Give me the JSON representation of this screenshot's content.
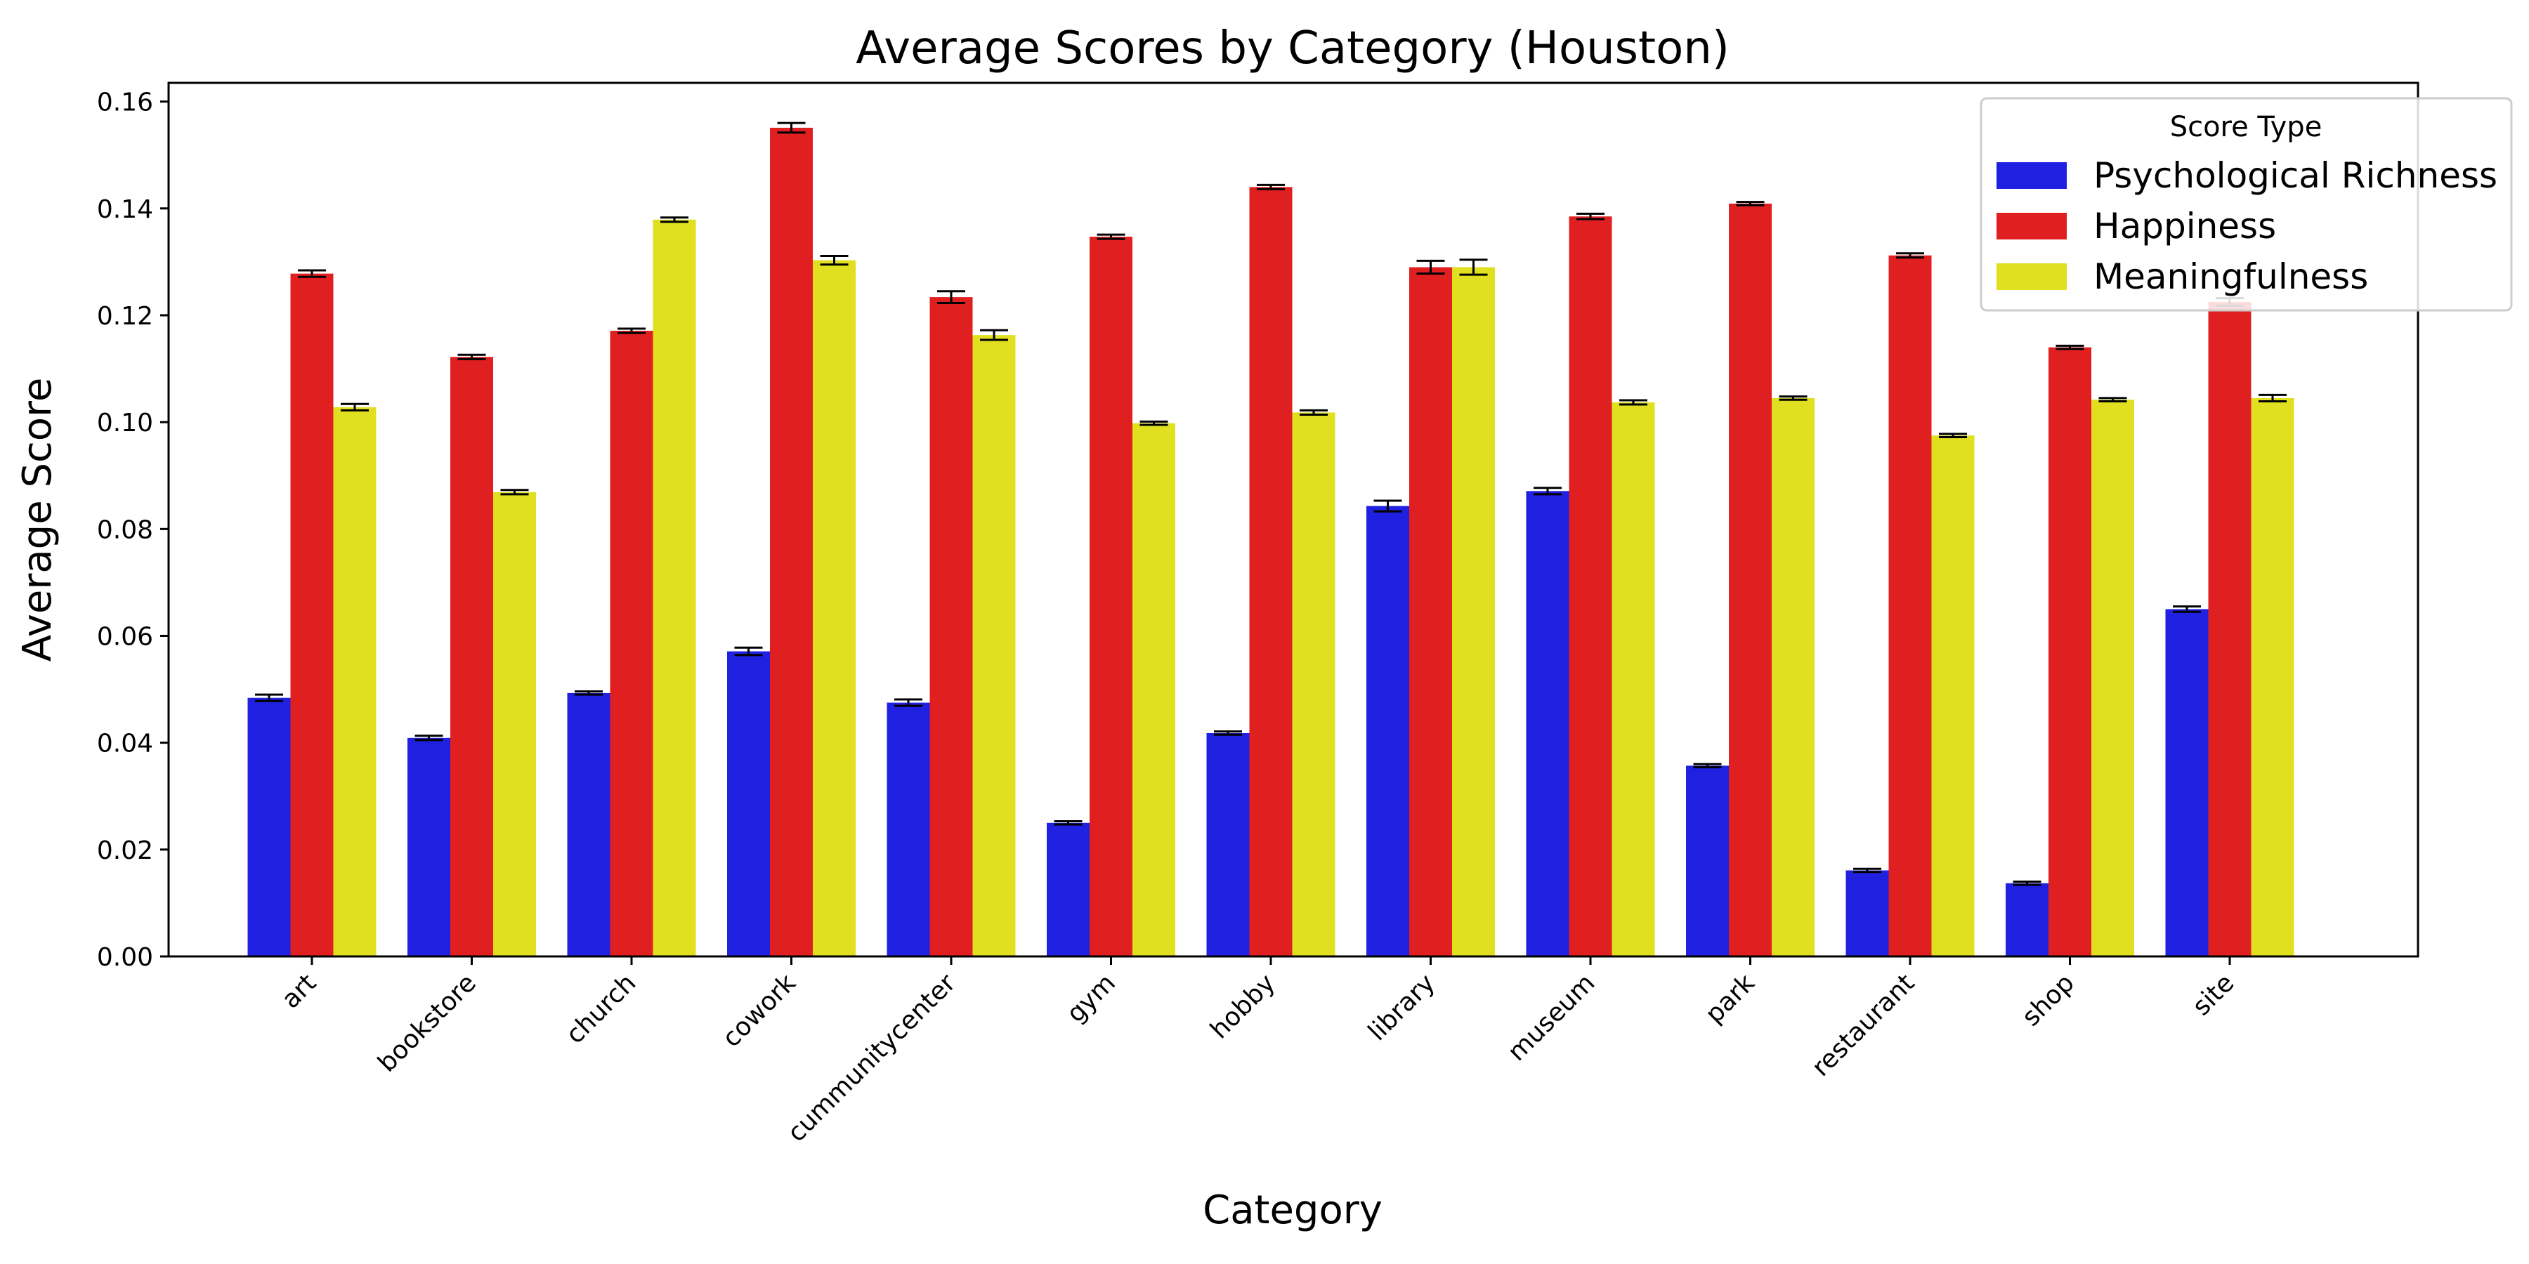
{
  "chart_data": {
    "type": "bar",
    "title": "Average Scores by Category (Houston)",
    "xlabel": "Category",
    "ylabel": "Average Score",
    "ylim": [
      0,
      0.1635
    ],
    "yticks": [
      "0.00",
      "0.02",
      "0.04",
      "0.06",
      "0.08",
      "0.10",
      "0.12",
      "0.14",
      "0.16"
    ],
    "grid": false,
    "legend": {
      "title": "Score Type",
      "placement": "top-right"
    },
    "categories": [
      "art",
      "bookstore",
      "church",
      "cowork",
      "cummunitycenter",
      "gym",
      "hobby",
      "library",
      "museum",
      "park",
      "restaurant",
      "shop",
      "site"
    ],
    "series": [
      {
        "name": "Psychological Richness",
        "color": "#2020e0",
        "values": [
          0.0484,
          0.0409,
          0.0493,
          0.0571,
          0.0475,
          0.025,
          0.0418,
          0.0843,
          0.0871,
          0.0357,
          0.0161,
          0.0137,
          0.065
        ],
        "errors": [
          0.0006,
          0.0004,
          0.0003,
          0.0007,
          0.0006,
          0.0003,
          0.0003,
          0.001,
          0.0006,
          0.0003,
          0.0003,
          0.0003,
          0.0005
        ]
      },
      {
        "name": "Happiness",
        "color": "#e02020",
        "values": [
          0.1278,
          0.1122,
          0.1171,
          0.1551,
          0.1234,
          0.1347,
          0.144,
          0.129,
          0.1385,
          0.1409,
          0.1312,
          0.114,
          0.1225
        ],
        "errors": [
          0.0006,
          0.0004,
          0.0004,
          0.0009,
          0.0011,
          0.0004,
          0.0004,
          0.0012,
          0.0005,
          0.0003,
          0.0004,
          0.0003,
          0.0007
        ]
      },
      {
        "name": "Meaningfulness",
        "color": "#e0e020",
        "values": [
          0.1028,
          0.0869,
          0.1379,
          0.1303,
          0.1163,
          0.0998,
          0.1018,
          0.129,
          0.1037,
          0.1045,
          0.0975,
          0.1042,
          0.1045
        ],
        "errors": [
          0.0006,
          0.0004,
          0.0004,
          0.0008,
          0.0009,
          0.0003,
          0.0004,
          0.0014,
          0.0004,
          0.0003,
          0.0003,
          0.0003,
          0.0006
        ]
      }
    ]
  }
}
